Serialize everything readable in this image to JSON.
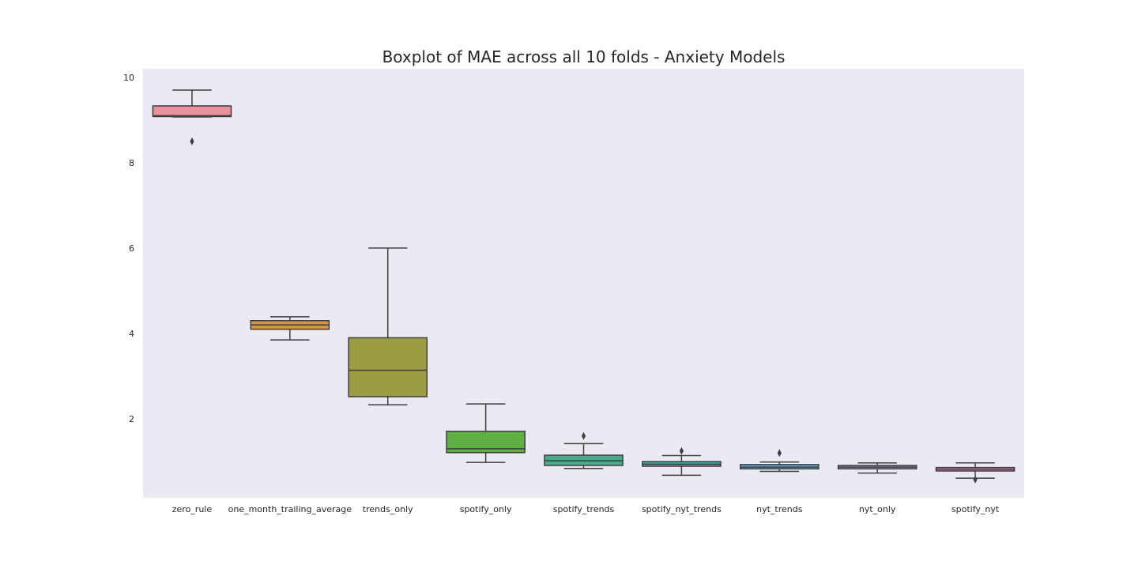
{
  "chart_data": {
    "type": "box",
    "title": "Boxplot of MAE across all 10 folds - Anxiety Models",
    "xlabel": "",
    "ylabel": "",
    "ylim": [
      0.15,
      10.2
    ],
    "yticks": [
      2,
      4,
      6,
      8,
      10
    ],
    "grid": false,
    "background": "#eaeaf2",
    "categories": [
      "zero_rule",
      "one_month_trailing_average",
      "trends_only",
      "spotify_only",
      "spotify_trends",
      "spotify_nyt_trends",
      "nyt_trends",
      "nyt_only",
      "spotify_nyt"
    ],
    "boxes": [
      {
        "name": "zero_rule",
        "color": "#e8909c",
        "whisker_low": 9.07,
        "q1": 9.08,
        "median": 9.1,
        "q3": 9.33,
        "whisker_high": 9.7,
        "outliers": [
          8.5
        ]
      },
      {
        "name": "one_month_trailing_average",
        "color": "#d39745",
        "whisker_low": 3.85,
        "q1": 4.1,
        "median": 4.2,
        "q3": 4.3,
        "whisker_high": 4.39,
        "outliers": []
      },
      {
        "name": "trends_only",
        "color": "#9c9c44",
        "whisker_low": 2.33,
        "q1": 2.52,
        "median": 3.14,
        "q3": 3.9,
        "whisker_high": 6.0,
        "outliers": []
      },
      {
        "name": "spotify_only",
        "color": "#5fb043",
        "whisker_low": 0.98,
        "q1": 1.21,
        "median": 1.3,
        "q3": 1.71,
        "whisker_high": 2.35,
        "outliers": []
      },
      {
        "name": "spotify_trends",
        "color": "#46ab8a",
        "whisker_low": 0.84,
        "q1": 0.91,
        "median": 1.02,
        "q3": 1.15,
        "whisker_high": 1.42,
        "outliers": [
          1.6
        ]
      },
      {
        "name": "spotify_nyt_trends",
        "color": "#47a7a4",
        "whisker_low": 0.68,
        "q1": 0.89,
        "median": 0.94,
        "q3": 1.0,
        "whisker_high": 1.14,
        "outliers": [
          1.25
        ]
      },
      {
        "name": "nyt_trends",
        "color": "#5fa7d6",
        "whisker_low": 0.77,
        "q1": 0.83,
        "median": 0.87,
        "q3": 0.93,
        "whisker_high": 0.99,
        "outliers": [
          1.2
        ]
      },
      {
        "name": "nyt_only",
        "color": "#a39ad4",
        "whisker_low": 0.73,
        "q1": 0.83,
        "median": 0.87,
        "q3": 0.91,
        "whisker_high": 0.97,
        "outliers": []
      },
      {
        "name": "spotify_nyt",
        "color": "#e48fd4",
        "whisker_low": 0.61,
        "q1": 0.78,
        "median": 0.82,
        "q3": 0.86,
        "whisker_high": 0.97,
        "outliers": [
          0.58
        ]
      }
    ]
  }
}
